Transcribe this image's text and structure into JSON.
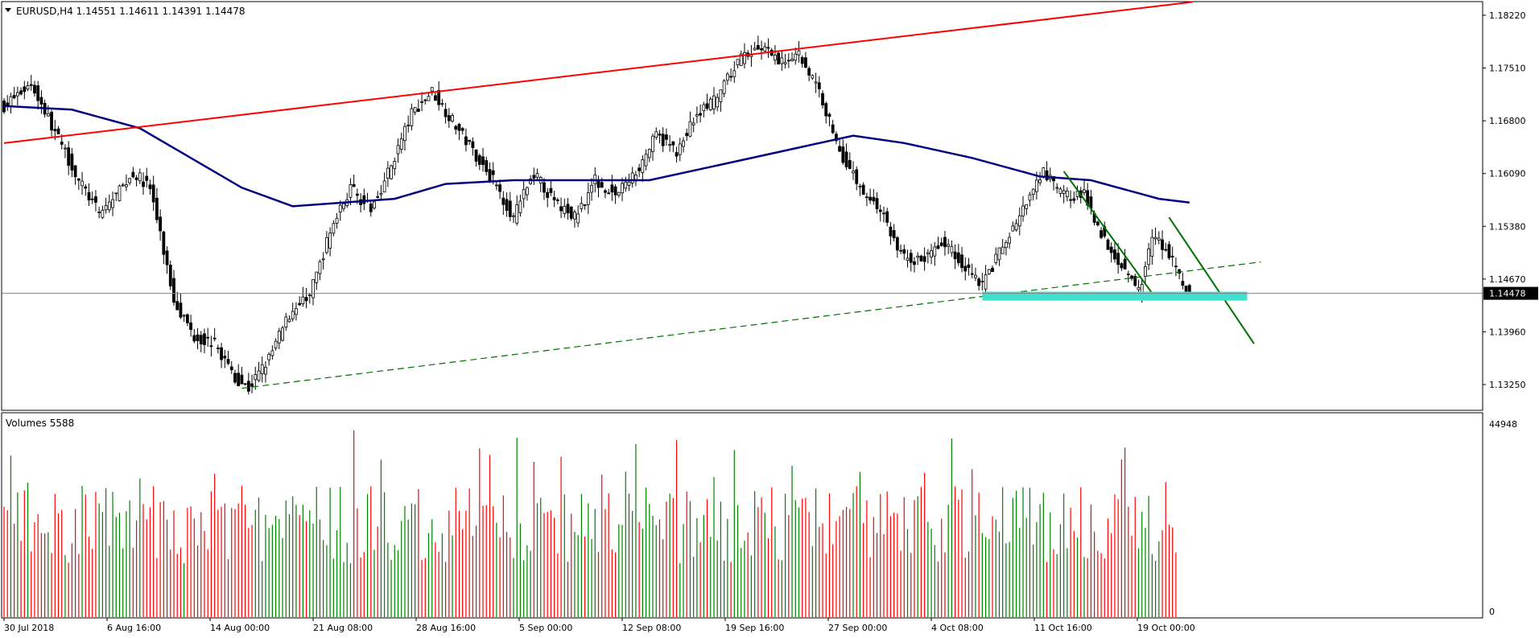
{
  "header": {
    "symbol_line": "EURUSD,H4  1.14551 1.14611 1.14391 1.14478"
  },
  "volume_panel": {
    "label": "Volumes 5588",
    "max_label": "44948",
    "min_label": "0"
  },
  "price_axis": {
    "ticks": [
      "1.18220",
      "1.17510",
      "1.16800",
      "1.16090",
      "1.15380",
      "1.14670",
      "1.13960",
      "1.13250"
    ],
    "tick_values": [
      1.1822,
      1.1751,
      1.168,
      1.1609,
      1.1538,
      1.1467,
      1.1396,
      1.1325
    ],
    "current_price": "1.14478",
    "current_value": 1.14478
  },
  "time_axis": {
    "labels": [
      "30 Jul 2018",
      "6 Aug 16:00",
      "14 Aug 00:00",
      "21 Aug 08:00",
      "28 Aug 16:00",
      "5 Sep 00:00",
      "12 Sep 08:00",
      "19 Sep 16:00",
      "27 Sep 00:00",
      "4 Oct 08:00",
      "11 Oct 16:00",
      "19 Oct 00:00"
    ]
  },
  "colors": {
    "bull": "#008000",
    "bear": "#ff0000",
    "candle": "#000000",
    "moving_average": "#000080",
    "resistance_line": "#ff0000",
    "trend_lines": "#007000",
    "support_zone": "#40e0d0"
  },
  "chart_data": {
    "type": "candlestick",
    "instrument": "EURUSD",
    "timeframe": "H4",
    "ohlc_last": {
      "open": 1.14551,
      "high": 1.14611,
      "low": 1.14391,
      "close": 1.14478
    },
    "price_range": [
      1.13,
      1.184
    ],
    "volume_range": [
      0,
      44948
    ],
    "close_path": [
      [
        0,
        1.17
      ],
      [
        8,
        1.173
      ],
      [
        15,
        1.1665
      ],
      [
        22,
        1.16
      ],
      [
        28,
        1.1555
      ],
      [
        33,
        1.158
      ],
      [
        38,
        1.161
      ],
      [
        43,
        1.159
      ],
      [
        50,
        1.144
      ],
      [
        56,
        1.139
      ],
      [
        62,
        1.138
      ],
      [
        68,
        1.1335
      ],
      [
        72,
        1.132
      ],
      [
        78,
        1.136
      ],
      [
        84,
        1.142
      ],
      [
        90,
        1.1445
      ],
      [
        96,
        1.153
      ],
      [
        102,
        1.159
      ],
      [
        108,
        1.156
      ],
      [
        114,
        1.162
      ],
      [
        120,
        1.169
      ],
      [
        126,
        1.172
      ],
      [
        132,
        1.168
      ],
      [
        138,
        1.164
      ],
      [
        144,
        1.16
      ],
      [
        150,
        1.155
      ],
      [
        156,
        1.161
      ],
      [
        162,
        1.157
      ],
      [
        168,
        1.155
      ],
      [
        174,
        1.16
      ],
      [
        180,
        1.158
      ],
      [
        186,
        1.161
      ],
      [
        192,
        1.166
      ],
      [
        198,
        1.164
      ],
      [
        204,
        1.169
      ],
      [
        210,
        1.171
      ],
      [
        216,
        1.176
      ],
      [
        222,
        1.178
      ],
      [
        228,
        1.176
      ],
      [
        234,
        1.177
      ],
      [
        240,
        1.172
      ],
      [
        246,
        1.164
      ],
      [
        252,
        1.159
      ],
      [
        258,
        1.156
      ],
      [
        264,
        1.15
      ],
      [
        270,
        1.149
      ],
      [
        276,
        1.152
      ],
      [
        282,
        1.149
      ],
      [
        288,
        1.146
      ],
      [
        294,
        1.151
      ],
      [
        300,
        1.156
      ],
      [
        306,
        1.161
      ],
      [
        312,
        1.158
      ],
      [
        318,
        1.158
      ],
      [
        324,
        1.152
      ],
      [
        330,
        1.148
      ],
      [
        334,
        1.145
      ],
      [
        338,
        1.152
      ],
      [
        342,
        1.151
      ],
      [
        346,
        1.147
      ],
      [
        349,
        1.1448
      ]
    ],
    "moving_average": [
      [
        0,
        1.17
      ],
      [
        20,
        1.1695
      ],
      [
        40,
        1.167
      ],
      [
        55,
        1.163
      ],
      [
        70,
        1.159
      ],
      [
        85,
        1.1565
      ],
      [
        100,
        1.157
      ],
      [
        115,
        1.1575
      ],
      [
        130,
        1.1595
      ],
      [
        150,
        1.16
      ],
      [
        170,
        1.16
      ],
      [
        190,
        1.16
      ],
      [
        210,
        1.162
      ],
      [
        230,
        1.164
      ],
      [
        250,
        1.166
      ],
      [
        265,
        1.165
      ],
      [
        285,
        1.163
      ],
      [
        305,
        1.1605
      ],
      [
        320,
        1.16
      ],
      [
        340,
        1.1575
      ],
      [
        349,
        1.157
      ]
    ],
    "resistance_line": [
      [
        0,
        1.165
      ],
      [
        350,
        1.184
      ]
    ],
    "dashed_support_line": [
      [
        70,
        1.132
      ],
      [
        370,
        1.149
      ]
    ],
    "down_trendline_1": [
      [
        312,
        1.1612
      ],
      [
        338,
        1.1448
      ]
    ],
    "down_trendline_2": [
      [
        343,
        1.155
      ],
      [
        368,
        1.138
      ]
    ],
    "support_zone": {
      "bar_from": 288,
      "bar_to": 366,
      "price_low": 1.1438,
      "price_high": 1.145
    }
  }
}
